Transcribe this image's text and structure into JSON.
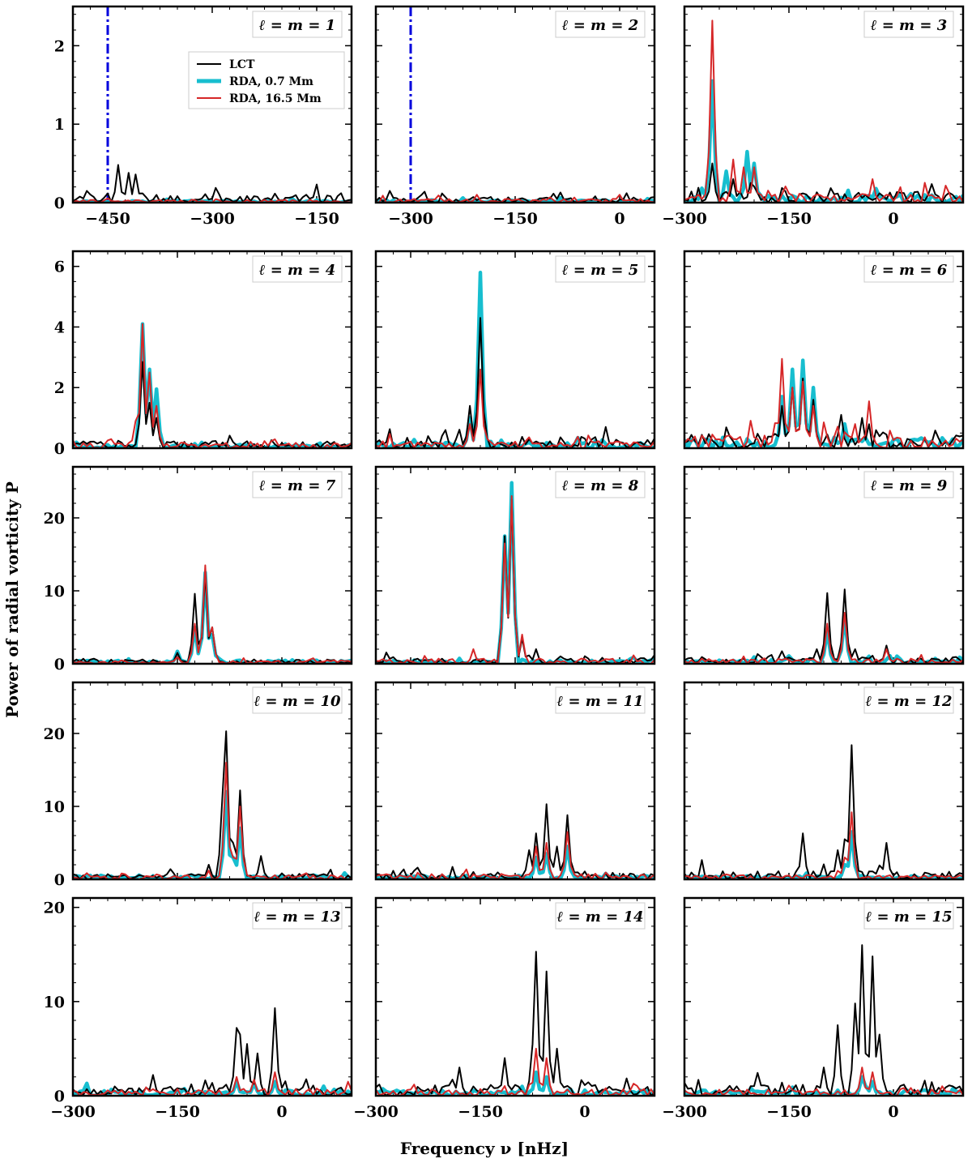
{
  "figure": {
    "ylabel": "Power of radial vorticity P",
    "xlabel": "Frequency ν [nHz]"
  },
  "legend": {
    "entries": [
      {
        "name": "LCT",
        "color": "#000000"
      },
      {
        "name": "RDA, 0.7 Mm",
        "color": "#17becf"
      },
      {
        "name": "RDA, 16.5 Mm",
        "color": "#d62728"
      }
    ]
  },
  "colors": {
    "lct": "#000000",
    "rda07": "#17becf",
    "rda165": "#d62728",
    "marker": "#0000dd"
  },
  "chart_data": [
    {
      "type": "line",
      "panel": "ℓ = m = 1",
      "xlim": [
        -500,
        -100
      ],
      "ylim": [
        0,
        2.5
      ],
      "xticks": [
        -450,
        -300,
        -150
      ],
      "yticks": [
        0,
        1,
        2
      ],
      "vline": -450,
      "peaks": {
        "lct": [
          [
            -480,
            0.15
          ],
          [
            -435,
            0.48
          ],
          [
            -420,
            0.38
          ],
          [
            -410,
            0.36
          ]
        ],
        "rda07": [],
        "rda165": []
      },
      "noise": {
        "lct": 0.1,
        "rda07": 0.02,
        "rda165": 0.03
      }
    },
    {
      "type": "line",
      "panel": "ℓ = m = 2",
      "xlim": [
        -350,
        50
      ],
      "ylim": [
        0,
        2.5
      ],
      "xticks": [
        -300,
        -150,
        0
      ],
      "yticks": [
        0,
        1,
        2
      ],
      "vline": -300,
      "peaks": {
        "lct": [
          [
            -330,
            0.15
          ]
        ],
        "rda07": [],
        "rda165": [
          [
            -205,
            0.1
          ],
          [
            0,
            0.1
          ]
        ]
      },
      "noise": {
        "lct": 0.06,
        "rda07": 0.03,
        "rda165": 0.04
      }
    },
    {
      "type": "line",
      "panel": "ℓ = m = 3",
      "xlim": [
        -300,
        100
      ],
      "ylim": [
        0,
        2.5
      ],
      "xticks": [
        -300,
        -150,
        0
      ],
      "yticks": [
        0,
        1,
        2
      ],
      "vline": null,
      "peaks": {
        "lct": [
          [
            -260,
            0.5
          ],
          [
            -230,
            0.3
          ],
          [
            -205,
            0.25
          ]
        ],
        "rda07": [
          [
            -260,
            1.55
          ],
          [
            -240,
            0.4
          ],
          [
            -210,
            0.65
          ],
          [
            -200,
            0.5
          ]
        ],
        "rda165": [
          [
            -260,
            2.32
          ],
          [
            -230,
            0.55
          ],
          [
            -215,
            0.45
          ],
          [
            -200,
            0.45
          ],
          [
            -30,
            0.3
          ]
        ]
      },
      "noise": {
        "lct": 0.12,
        "rda07": 0.08,
        "rda165": 0.1
      }
    },
    {
      "type": "line",
      "panel": "ℓ = m = 4",
      "xlim": [
        -300,
        100
      ],
      "ylim": [
        0,
        6.5
      ],
      "xticks": [],
      "yticks": [
        0,
        2,
        4,
        6
      ],
      "vline": null,
      "peaks": {
        "lct": [
          [
            -200,
            2.85
          ],
          [
            -190,
            1.5
          ],
          [
            -180,
            1.0
          ]
        ],
        "rda07": [
          [
            -200,
            4.1
          ],
          [
            -190,
            2.6
          ],
          [
            -180,
            1.95
          ]
        ],
        "rda165": [
          [
            -200,
            4.1
          ],
          [
            -190,
            2.5
          ],
          [
            -210,
            0.9
          ],
          [
            -180,
            1.4
          ]
        ]
      },
      "noise": {
        "lct": 0.2,
        "rda07": 0.1,
        "rda165": 0.15
      }
    },
    {
      "type": "line",
      "panel": "ℓ = m = 5",
      "xlim": [
        -350,
        50
      ],
      "ylim": [
        0,
        6.5
      ],
      "xticks": [],
      "yticks": [
        0,
        2,
        4,
        6
      ],
      "vline": null,
      "peaks": {
        "lct": [
          [
            -200,
            4.3
          ],
          [
            -215,
            1.4
          ],
          [
            -250,
            0.6
          ],
          [
            -20,
            0.7
          ]
        ],
        "rda07": [
          [
            -200,
            5.8
          ],
          [
            -215,
            1.0
          ]
        ],
        "rda165": [
          [
            -200,
            2.6
          ],
          [
            -215,
            0.8
          ]
        ]
      },
      "noise": {
        "lct": 0.3,
        "rda07": 0.15,
        "rda165": 0.2
      }
    },
    {
      "type": "line",
      "panel": "ℓ = m = 6",
      "xlim": [
        -300,
        100
      ],
      "ylim": [
        0,
        6.5
      ],
      "xticks": [],
      "yticks": [
        0,
        2,
        4,
        6
      ],
      "vline": null,
      "peaks": {
        "lct": [
          [
            -160,
            1.4
          ],
          [
            -145,
            2.0
          ],
          [
            -130,
            2.3
          ],
          [
            -115,
            1.6
          ],
          [
            -75,
            1.1
          ],
          [
            -45,
            1.0
          ]
        ],
        "rda07": [
          [
            -160,
            1.7
          ],
          [
            -145,
            2.6
          ],
          [
            -130,
            2.9
          ],
          [
            -115,
            2.0
          ],
          [
            -70,
            0.8
          ]
        ],
        "rda165": [
          [
            -160,
            2.95
          ],
          [
            -145,
            2.0
          ],
          [
            -130,
            2.2
          ],
          [
            -115,
            1.4
          ],
          [
            -35,
            1.55
          ]
        ]
      },
      "noise": {
        "lct": 0.4,
        "rda07": 0.3,
        "rda165": 0.35
      }
    },
    {
      "type": "line",
      "panel": "ℓ = m = 7",
      "xlim": [
        -300,
        100
      ],
      "ylim": [
        0,
        27
      ],
      "xticks": [],
      "yticks": [
        0,
        10,
        20
      ],
      "vline": null,
      "peaks": {
        "lct": [
          [
            -125,
            9.6
          ],
          [
            -110,
            12.5
          ],
          [
            -100,
            5.0
          ],
          [
            -150,
            1.5
          ]
        ],
        "rda07": [
          [
            -125,
            5.0
          ],
          [
            -110,
            12.5
          ],
          [
            -100,
            4.0
          ],
          [
            -150,
            1.7
          ]
        ],
        "rda165": [
          [
            -125,
            5.5
          ],
          [
            -110,
            13.5
          ],
          [
            -100,
            5.0
          ]
        ]
      },
      "noise": {
        "lct": 0.5,
        "rda07": 0.4,
        "rda165": 0.4
      }
    },
    {
      "type": "line",
      "panel": "ℓ = m = 8",
      "xlim": [
        -350,
        50
      ],
      "ylim": [
        0,
        27
      ],
      "xticks": [],
      "yticks": [
        0,
        10,
        20
      ],
      "vline": null,
      "peaks": {
        "lct": [
          [
            -165,
            17.5
          ],
          [
            -155,
            22.5
          ],
          [
            -140,
            3.5
          ],
          [
            -120,
            2.0
          ]
        ],
        "rda07": [
          [
            -165,
            17.5
          ],
          [
            -155,
            24.8
          ]
        ],
        "rda165": [
          [
            -165,
            16.5
          ],
          [
            -155,
            23.0
          ],
          [
            -140,
            4.0
          ],
          [
            -210,
            2.0
          ]
        ]
      },
      "noise": {
        "lct": 0.6,
        "rda07": 0.4,
        "rda165": 0.6
      }
    },
    {
      "type": "line",
      "panel": "ℓ = m = 9",
      "xlim": [
        -300,
        100
      ],
      "ylim": [
        0,
        27
      ],
      "xticks": [],
      "yticks": [
        0,
        10,
        20
      ],
      "vline": null,
      "peaks": {
        "lct": [
          [
            -95,
            9.7
          ],
          [
            -70,
            10.2
          ],
          [
            -110,
            2.0
          ],
          [
            -10,
            2.5
          ],
          [
            -55,
            2.0
          ]
        ],
        "rda07": [
          [
            -95,
            4.5
          ],
          [
            -70,
            6.5
          ]
        ],
        "rda165": [
          [
            -95,
            5.5
          ],
          [
            -70,
            7.0
          ],
          [
            -10,
            2.0
          ]
        ]
      },
      "noise": {
        "lct": 0.8,
        "rda07": 0.5,
        "rda165": 0.6
      }
    },
    {
      "type": "line",
      "panel": "ℓ = m = 10",
      "xlim": [
        -300,
        100
      ],
      "ylim": [
        0,
        27
      ],
      "xticks": [],
      "yticks": [
        0,
        10,
        20
      ],
      "vline": null,
      "peaks": {
        "lct": [
          [
            -80,
            20.3
          ],
          [
            -85,
            12.0
          ],
          [
            -60,
            12.2
          ],
          [
            -70,
            5.0
          ],
          [
            -30,
            3.2
          ],
          [
            -105,
            2.0
          ]
        ],
        "rda07": [
          [
            -80,
            12.0
          ],
          [
            -60,
            7.0
          ],
          [
            -70,
            3.0
          ]
        ],
        "rda165": [
          [
            -80,
            16.0
          ],
          [
            -60,
            10.0
          ],
          [
            -70,
            3.0
          ]
        ]
      },
      "noise": {
        "lct": 0.7,
        "rda07": 0.4,
        "rda165": 0.5
      }
    },
    {
      "type": "line",
      "panel": "ℓ = m = 11",
      "xlim": [
        -350,
        50
      ],
      "ylim": [
        0,
        27
      ],
      "xticks": [],
      "yticks": [
        0,
        10,
        20
      ],
      "vline": null,
      "peaks": {
        "lct": [
          [
            -105,
            10.3
          ],
          [
            -75,
            8.8
          ],
          [
            -120,
            6.3
          ],
          [
            -130,
            4.0
          ],
          [
            -90,
            4.5
          ]
        ],
        "rda07": [
          [
            -105,
            3.5
          ],
          [
            -75,
            4.5
          ],
          [
            -120,
            3.0
          ]
        ],
        "rda165": [
          [
            -105,
            5.0
          ],
          [
            -75,
            6.5
          ],
          [
            -120,
            4.5
          ]
        ]
      },
      "noise": {
        "lct": 1.0,
        "rda07": 0.5,
        "rda165": 0.6
      }
    },
    {
      "type": "line",
      "panel": "ℓ = m = 12",
      "xlim": [
        -300,
        100
      ],
      "ylim": [
        0,
        27
      ],
      "xticks": [],
      "yticks": [
        0,
        10,
        20
      ],
      "vline": null,
      "peaks": {
        "lct": [
          [
            -60,
            18.4
          ],
          [
            -130,
            6.3
          ],
          [
            -10,
            5.0
          ],
          [
            -80,
            4.0
          ],
          [
            -70,
            5.5
          ]
        ],
        "rda07": [
          [
            -60,
            6.5
          ],
          [
            -70,
            2.0
          ]
        ],
        "rda165": [
          [
            -60,
            9.2
          ],
          [
            -70,
            3.0
          ]
        ]
      },
      "noise": {
        "lct": 1.0,
        "rda07": 0.4,
        "rda165": 0.5
      }
    },
    {
      "type": "line",
      "panel": "ℓ = m = 13",
      "xlim": [
        -300,
        100
      ],
      "ylim": [
        0,
        21
      ],
      "xticks": [
        -300,
        -150,
        0
      ],
      "yticks": [
        0,
        10,
        20
      ],
      "vline": null,
      "peaks": {
        "lct": [
          [
            -65,
            7.2
          ],
          [
            -60,
            6.5
          ],
          [
            -50,
            5.5
          ],
          [
            -35,
            4.5
          ],
          [
            -10,
            9.3
          ],
          [
            -185,
            2.2
          ]
        ],
        "rda07": [
          [
            -65,
            1.5
          ],
          [
            -40,
            1.3
          ],
          [
            -10,
            1.5
          ]
        ],
        "rda165": [
          [
            -65,
            2.0
          ],
          [
            -40,
            1.7
          ],
          [
            -10,
            2.5
          ]
        ]
      },
      "noise": {
        "lct": 0.8,
        "rda07": 0.5,
        "rda165": 0.6
      }
    },
    {
      "type": "line",
      "panel": "ℓ = m = 14",
      "xlim": [
        -300,
        100
      ],
      "ylim": [
        0,
        21
      ],
      "xticks": [
        -300,
        -150,
        0
      ],
      "yticks": [
        0,
        10,
        20
      ],
      "vline": null,
      "peaks": {
        "lct": [
          [
            -70,
            15.3
          ],
          [
            -55,
            13.2
          ],
          [
            -75,
            5.5
          ],
          [
            -115,
            4.0
          ],
          [
            -180,
            3.0
          ],
          [
            -40,
            5.0
          ]
        ],
        "rda07": [
          [
            -70,
            2.5
          ],
          [
            -55,
            2.0
          ]
        ],
        "rda165": [
          [
            -70,
            5.0
          ],
          [
            -55,
            4.0
          ]
        ]
      },
      "noise": {
        "lct": 1.0,
        "rda07": 0.5,
        "rda165": 0.6
      }
    },
    {
      "type": "line",
      "panel": "ℓ = m = 15",
      "xlim": [
        -300,
        100
      ],
      "ylim": [
        0,
        21
      ],
      "xticks": [
        -300,
        -150,
        0
      ],
      "yticks": [
        0,
        10,
        20
      ],
      "vline": null,
      "peaks": {
        "lct": [
          [
            -45,
            16.0
          ],
          [
            -30,
            14.8
          ],
          [
            -55,
            9.8
          ],
          [
            -80,
            7.5
          ],
          [
            -20,
            6.5
          ],
          [
            -100,
            3.0
          ]
        ],
        "rda07": [
          [
            -45,
            2.0
          ],
          [
            -30,
            1.5
          ]
        ],
        "rda165": [
          [
            -45,
            3.0
          ],
          [
            -30,
            2.5
          ]
        ]
      },
      "noise": {
        "lct": 1.0,
        "rda07": 0.5,
        "rda165": 0.6
      }
    }
  ]
}
